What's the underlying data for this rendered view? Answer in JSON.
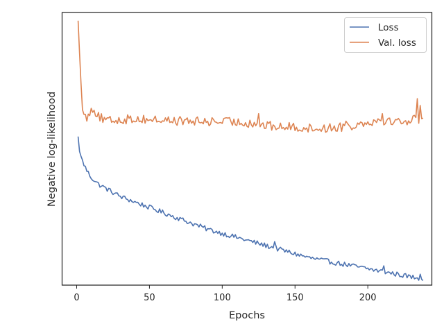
{
  "chart_data": {
    "type": "line",
    "xlabel": "Epochs",
    "ylabel": "Negative log-likelihood",
    "xlim": [
      -10,
      244
    ],
    "ylim": [
      0,
      1
    ],
    "xticks": [
      0,
      50,
      100,
      150,
      200
    ],
    "y_tick_labels_visible": false,
    "grid": false,
    "legend_position": "top-right",
    "x_start": 1,
    "x_end": 238,
    "series": [
      {
        "name": "Loss",
        "color": "#4c72b0",
        "keypoints": [
          [
            1,
            0.545
          ],
          [
            2,
            0.49
          ],
          [
            4,
            0.455
          ],
          [
            7,
            0.42
          ],
          [
            10,
            0.395
          ],
          [
            15,
            0.37
          ],
          [
            20,
            0.355
          ],
          [
            25,
            0.34
          ],
          [
            30,
            0.325
          ],
          [
            40,
            0.305
          ],
          [
            50,
            0.285
          ],
          [
            60,
            0.265
          ],
          [
            70,
            0.245
          ],
          [
            80,
            0.225
          ],
          [
            90,
            0.205
          ],
          [
            100,
            0.19
          ],
          [
            110,
            0.175
          ],
          [
            120,
            0.16
          ],
          [
            130,
            0.145
          ],
          [
            140,
            0.13
          ],
          [
            150,
            0.115
          ],
          [
            160,
            0.1
          ],
          [
            170,
            0.09
          ],
          [
            180,
            0.08
          ],
          [
            190,
            0.07
          ],
          [
            200,
            0.06
          ],
          [
            210,
            0.05
          ],
          [
            220,
            0.04
          ],
          [
            230,
            0.03
          ],
          [
            238,
            0.025
          ]
        ],
        "noise": 0.009,
        "spikes": [
          [
            136,
            0.03
          ],
          [
            211,
            0.025
          ],
          [
            236,
            0.015
          ]
        ]
      },
      {
        "name": "Val. loss",
        "color": "#dd8452",
        "keypoints": [
          [
            1,
            0.97
          ],
          [
            2,
            0.85
          ],
          [
            3,
            0.74
          ],
          [
            4,
            0.66
          ],
          [
            5,
            0.62
          ],
          [
            7,
            0.615
          ],
          [
            9,
            0.63
          ],
          [
            10,
            0.66
          ],
          [
            12,
            0.64
          ],
          [
            15,
            0.62
          ],
          [
            20,
            0.6
          ],
          [
            25,
            0.605
          ],
          [
            40,
            0.61
          ],
          [
            60,
            0.605
          ],
          [
            80,
            0.6
          ],
          [
            100,
            0.6
          ],
          [
            120,
            0.595
          ],
          [
            130,
            0.585
          ],
          [
            140,
            0.58
          ],
          [
            150,
            0.58
          ],
          [
            160,
            0.575
          ],
          [
            170,
            0.575
          ],
          [
            180,
            0.58
          ],
          [
            190,
            0.585
          ],
          [
            200,
            0.6
          ],
          [
            210,
            0.605
          ],
          [
            220,
            0.6
          ],
          [
            230,
            0.605
          ],
          [
            234,
            0.61
          ],
          [
            238,
            0.61
          ]
        ],
        "noise": 0.017,
        "spikes": [
          [
            125,
            0.04
          ],
          [
            185,
            0.035
          ],
          [
            210,
            0.035
          ],
          [
            234,
            0.08
          ],
          [
            236,
            0.04
          ]
        ]
      }
    ]
  }
}
